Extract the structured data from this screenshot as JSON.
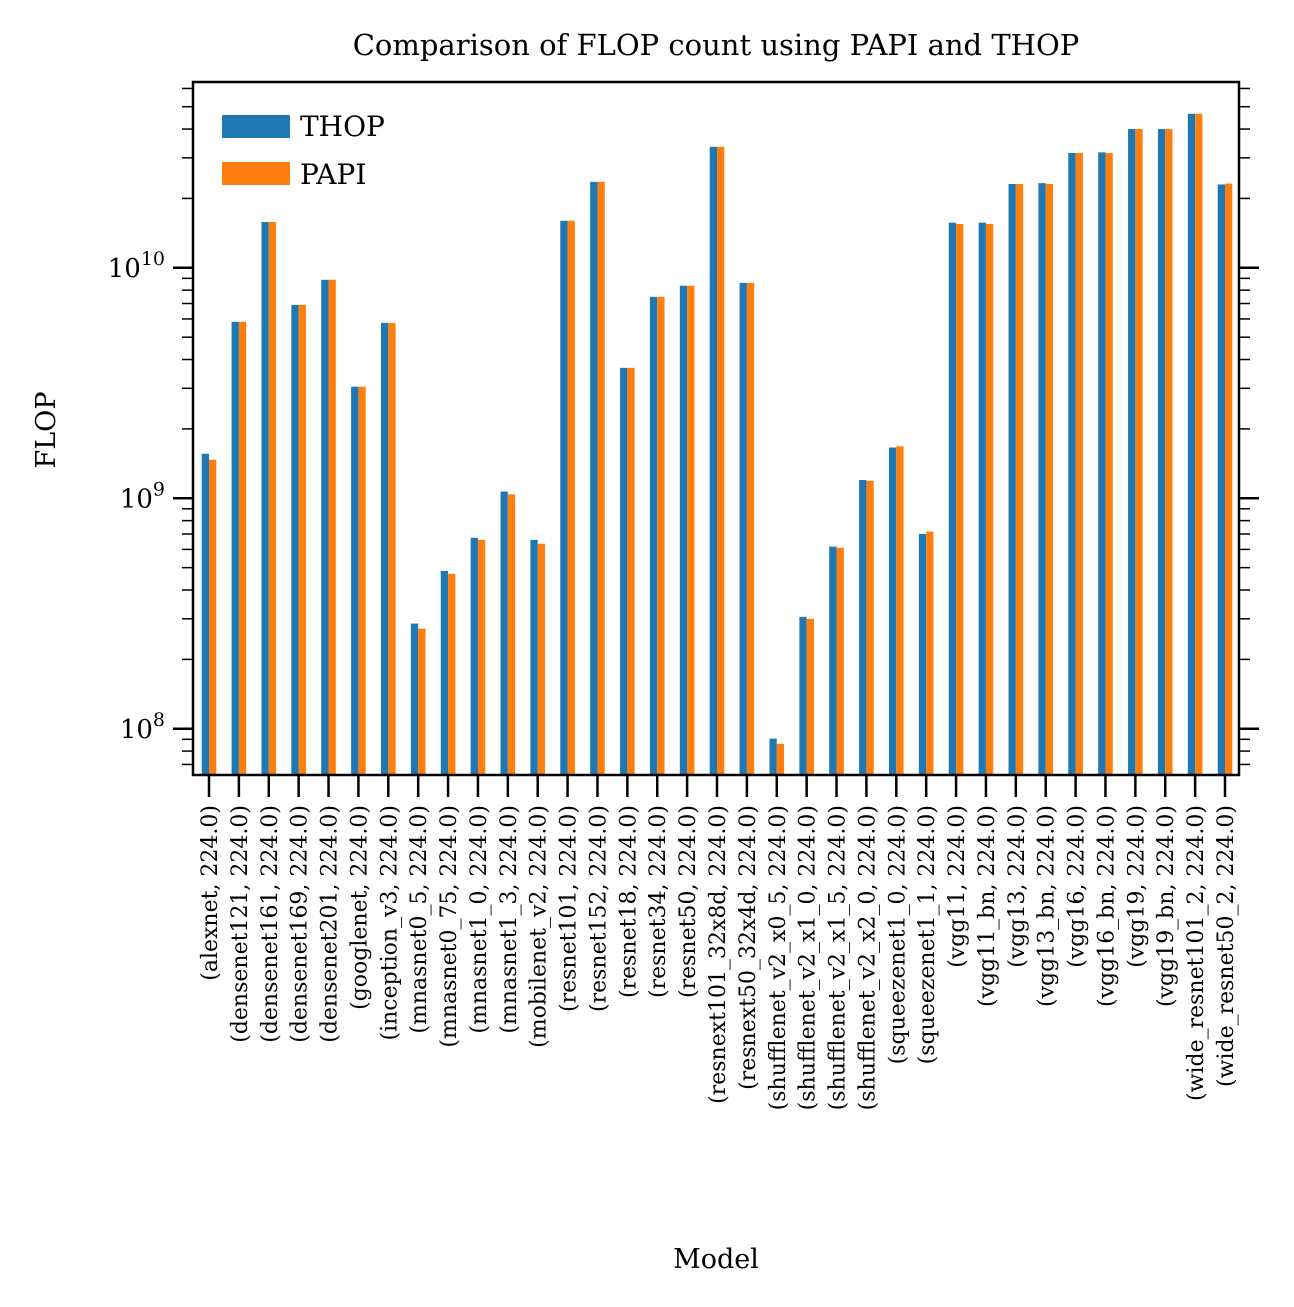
{
  "chart_data": {
    "type": "bar",
    "title": "Comparison of FLOP count using PAPI and THOP",
    "xlabel": "Model",
    "ylabel": "FLOP",
    "yscale": "log",
    "ylim": [
      63000000.0,
      64000000000.0
    ],
    "yticks": [
      100000000.0,
      1000000000.0,
      10000000000.0
    ],
    "ytick_labels": [
      "10^8",
      "10^9",
      "10^10"
    ],
    "grid": false,
    "legend_position": "top-left",
    "categories": [
      "(alexnet, 224.0)",
      "(densenet121, 224.0)",
      "(densenet161, 224.0)",
      "(densenet169, 224.0)",
      "(densenet201, 224.0)",
      "(googlenet, 224.0)",
      "(inception_v3, 224.0)",
      "(mnasnet0_5, 224.0)",
      "(mnasnet0_75, 224.0)",
      "(mnasnet1_0, 224.0)",
      "(mnasnet1_3, 224.0)",
      "(mobilenet_v2, 224.0)",
      "(resnet101, 224.0)",
      "(resnet152, 224.0)",
      "(resnet18, 224.0)",
      "(resnet34, 224.0)",
      "(resnet50, 224.0)",
      "(resnext101_32x8d, 224.0)",
      "(resnext50_32x4d, 224.0)",
      "(shufflenet_v2_x0_5, 224.0)",
      "(shufflenet_v2_x1_0, 224.0)",
      "(shufflenet_v2_x1_5, 224.0)",
      "(shufflenet_v2_x2_0, 224.0)",
      "(squeezenet1_0, 224.0)",
      "(squeezenet1_1, 224.0)",
      "(vgg11, 224.0)",
      "(vgg11_bn, 224.0)",
      "(vgg13, 224.0)",
      "(vgg13_bn, 224.0)",
      "(vgg16, 224.0)",
      "(vgg16_bn, 224.0)",
      "(vgg19, 224.0)",
      "(vgg19_bn, 224.0)",
      "(wide_resnet101_2, 224.0)",
      "(wide_resnet50_2, 224.0)"
    ],
    "series": [
      {
        "name": "THOP",
        "color": "#1f77b4",
        "values": [
          1560000000.0,
          5830000000.0,
          15800000000.0,
          6900000000.0,
          8870000000.0,
          3050000000.0,
          5770000000.0,
          286000000.0,
          484000000.0,
          674000000.0,
          1070000000.0,
          660000000.0,
          16000000000.0,
          23600000000.0,
          3680000000.0,
          7480000000.0,
          8360000000.0,
          33500000000.0,
          8600000000.0,
          90600000.0,
          306000000.0,
          617000000.0,
          1200000000.0,
          1660000000.0,
          700000000.0,
          15700000000.0,
          15700000000.0,
          23100000000.0,
          23300000000.0,
          31500000000.0,
          31700000000.0,
          40000000000.0,
          40000000000.0,
          46600000000.0,
          23000000000.0
        ]
      },
      {
        "name": "PAPI",
        "color": "#ff7f0e",
        "values": [
          1470000000.0,
          5830000000.0,
          15800000000.0,
          6900000000.0,
          8870000000.0,
          3050000000.0,
          5770000000.0,
          272000000.0,
          470000000.0,
          660000000.0,
          1040000000.0,
          635000000.0,
          16000000000.0,
          23600000000.0,
          3680000000.0,
          7480000000.0,
          8360000000.0,
          33500000000.0,
          8600000000.0,
          86000000.0,
          300000000.0,
          610000000.0,
          1190000000.0,
          1680000000.0,
          717000000.0,
          15500000000.0,
          15500000000.0,
          23100000000.0,
          23100000000.0,
          31500000000.0,
          31500000000.0,
          40000000000.0,
          40000000000.0,
          46600000000.0,
          23200000000.0
        ]
      }
    ]
  }
}
